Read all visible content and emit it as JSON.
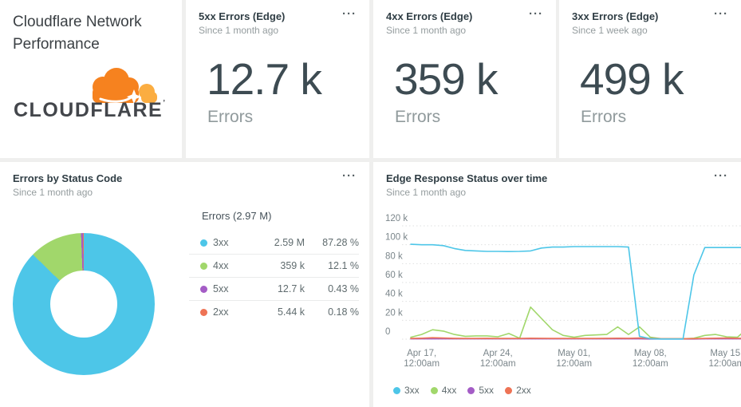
{
  "header_card": {
    "title": "Cloudflare Network Performance",
    "logo_wordmark": "CLOUDFLARE",
    "logo_tm": "’"
  },
  "menu_glyph": "···",
  "metric_cards": [
    {
      "title": "5xx Errors (Edge)",
      "subtitle": "Since 1 month ago",
      "value": "12.7 k",
      "unit": "Errors"
    },
    {
      "title": "4xx Errors (Edge)",
      "subtitle": "Since 1 month ago",
      "value": "359 k",
      "unit": "Errors"
    },
    {
      "title": "3xx Errors (Edge)",
      "subtitle": "Since 1 week ago",
      "value": "499 k",
      "unit": "Errors"
    }
  ],
  "pie_card": {
    "title": "Errors by Status Code",
    "subtitle": "Since 1 month ago"
  },
  "line_card": {
    "title": "Edge Response Status over time",
    "subtitle": "Since 1 month ago"
  },
  "colors": {
    "status_3xx": "#4dc6e8",
    "status_4xx": "#a1d76b",
    "status_5xx": "#a45cc6",
    "status_2xx": "#ee7355",
    "logo_orange": "#f6821f",
    "logo_light_orange": "#fbad41"
  },
  "chart_data": [
    {
      "type": "pie",
      "donut": true,
      "title": "Errors by Status Code",
      "period": "Since 1 month ago",
      "legend_title": "Errors (2.97 M)",
      "slices": [
        {
          "label": "3xx",
          "value": 2590000,
          "value_label": "2.59 M",
          "percent": 87.28,
          "percent_label": "87.28 %",
          "color": "#4dc6e8"
        },
        {
          "label": "4xx",
          "value": 359000,
          "value_label": "359 k",
          "percent": 12.1,
          "percent_label": "12.1 %",
          "color": "#a1d76b"
        },
        {
          "label": "5xx",
          "value": 12700,
          "value_label": "12.7 k",
          "percent": 0.43,
          "percent_label": "0.43 %",
          "color": "#a45cc6"
        },
        {
          "label": "2xx",
          "value": 5440,
          "value_label": "5.44 k",
          "percent": 0.18,
          "percent_label": "0.18 %",
          "color": "#ee7355"
        }
      ]
    },
    {
      "type": "line",
      "title": "Edge Response Status over time",
      "period": "Since 1 month ago",
      "x_start": "Apr 16, 12:00am",
      "x_step": "1 day",
      "ylim": [
        0,
        120000
      ],
      "grid": "dotted horizontal",
      "legend_position": "bottom",
      "y_tick_labels": [
        "120 k",
        "100 k",
        "80 k",
        "60 k",
        "40 k",
        "20 k",
        "0"
      ],
      "x_ticks": [
        {
          "day_index": 1,
          "label_line1": "Apr 17,",
          "label_line2": "12:00am"
        },
        {
          "day_index": 8,
          "label_line1": "Apr 24,",
          "label_line2": "12:00am"
        },
        {
          "day_index": 15,
          "label_line1": "May 01,",
          "label_line2": "12:00am"
        },
        {
          "day_index": 22,
          "label_line1": "May 08,",
          "label_line2": "12:00am"
        },
        {
          "day_index": 29,
          "label_line1": "May 15,",
          "label_line2": "12:00am"
        }
      ],
      "series": [
        {
          "name": "3xx",
          "color": "#4dc6e8",
          "values_k": [
            100.5,
            100,
            100,
            99,
            96,
            94,
            93.5,
            93,
            93,
            92.8,
            93,
            93.5,
            96.5,
            97.5,
            97.5,
            98,
            98,
            98,
            98,
            98,
            97.5,
            3,
            0.5,
            0.2,
            0.2,
            0.2,
            68,
            97,
            97,
            97,
            97,
            97
          ]
        },
        {
          "name": "4xx",
          "color": "#a1d76b",
          "values_k": [
            2,
            5,
            10,
            8.5,
            5,
            3,
            3.5,
            3.5,
            2.5,
            6,
            1,
            34,
            22,
            10,
            4,
            2,
            4,
            4.5,
            5,
            13,
            5,
            13,
            2,
            0.5,
            0.3,
            0.3,
            1,
            4,
            5,
            2.5,
            2,
            12
          ]
        },
        {
          "name": "5xx",
          "color": "#a45cc6",
          "values_k": [
            0.3,
            0.3,
            0.3,
            0.3,
            0.3,
            0.3,
            0.3,
            0.3,
            0.3,
            0.3,
            0.3,
            0.3,
            0.3,
            0.3,
            0.3,
            0.3,
            0.3,
            0.3,
            0.3,
            0.3,
            0.3,
            0.3,
            0.2,
            0.2,
            0.2,
            0.2,
            0.2,
            0.3,
            0.3,
            0.3,
            0.3,
            0.3
          ]
        },
        {
          "name": "2xx",
          "color": "#ee7355",
          "values_k": [
            0.8,
            1,
            1.5,
            1.2,
            0.9,
            0.8,
            0.8,
            0.9,
            0.8,
            0.8,
            0.8,
            1,
            0.9,
            0.8,
            0.8,
            0.8,
            0.8,
            0.8,
            0.9,
            1,
            0.9,
            1.2,
            0.8,
            0.5,
            0.5,
            0.5,
            0.6,
            0.8,
            1,
            1.2,
            0.9,
            0.9
          ]
        }
      ]
    }
  ]
}
